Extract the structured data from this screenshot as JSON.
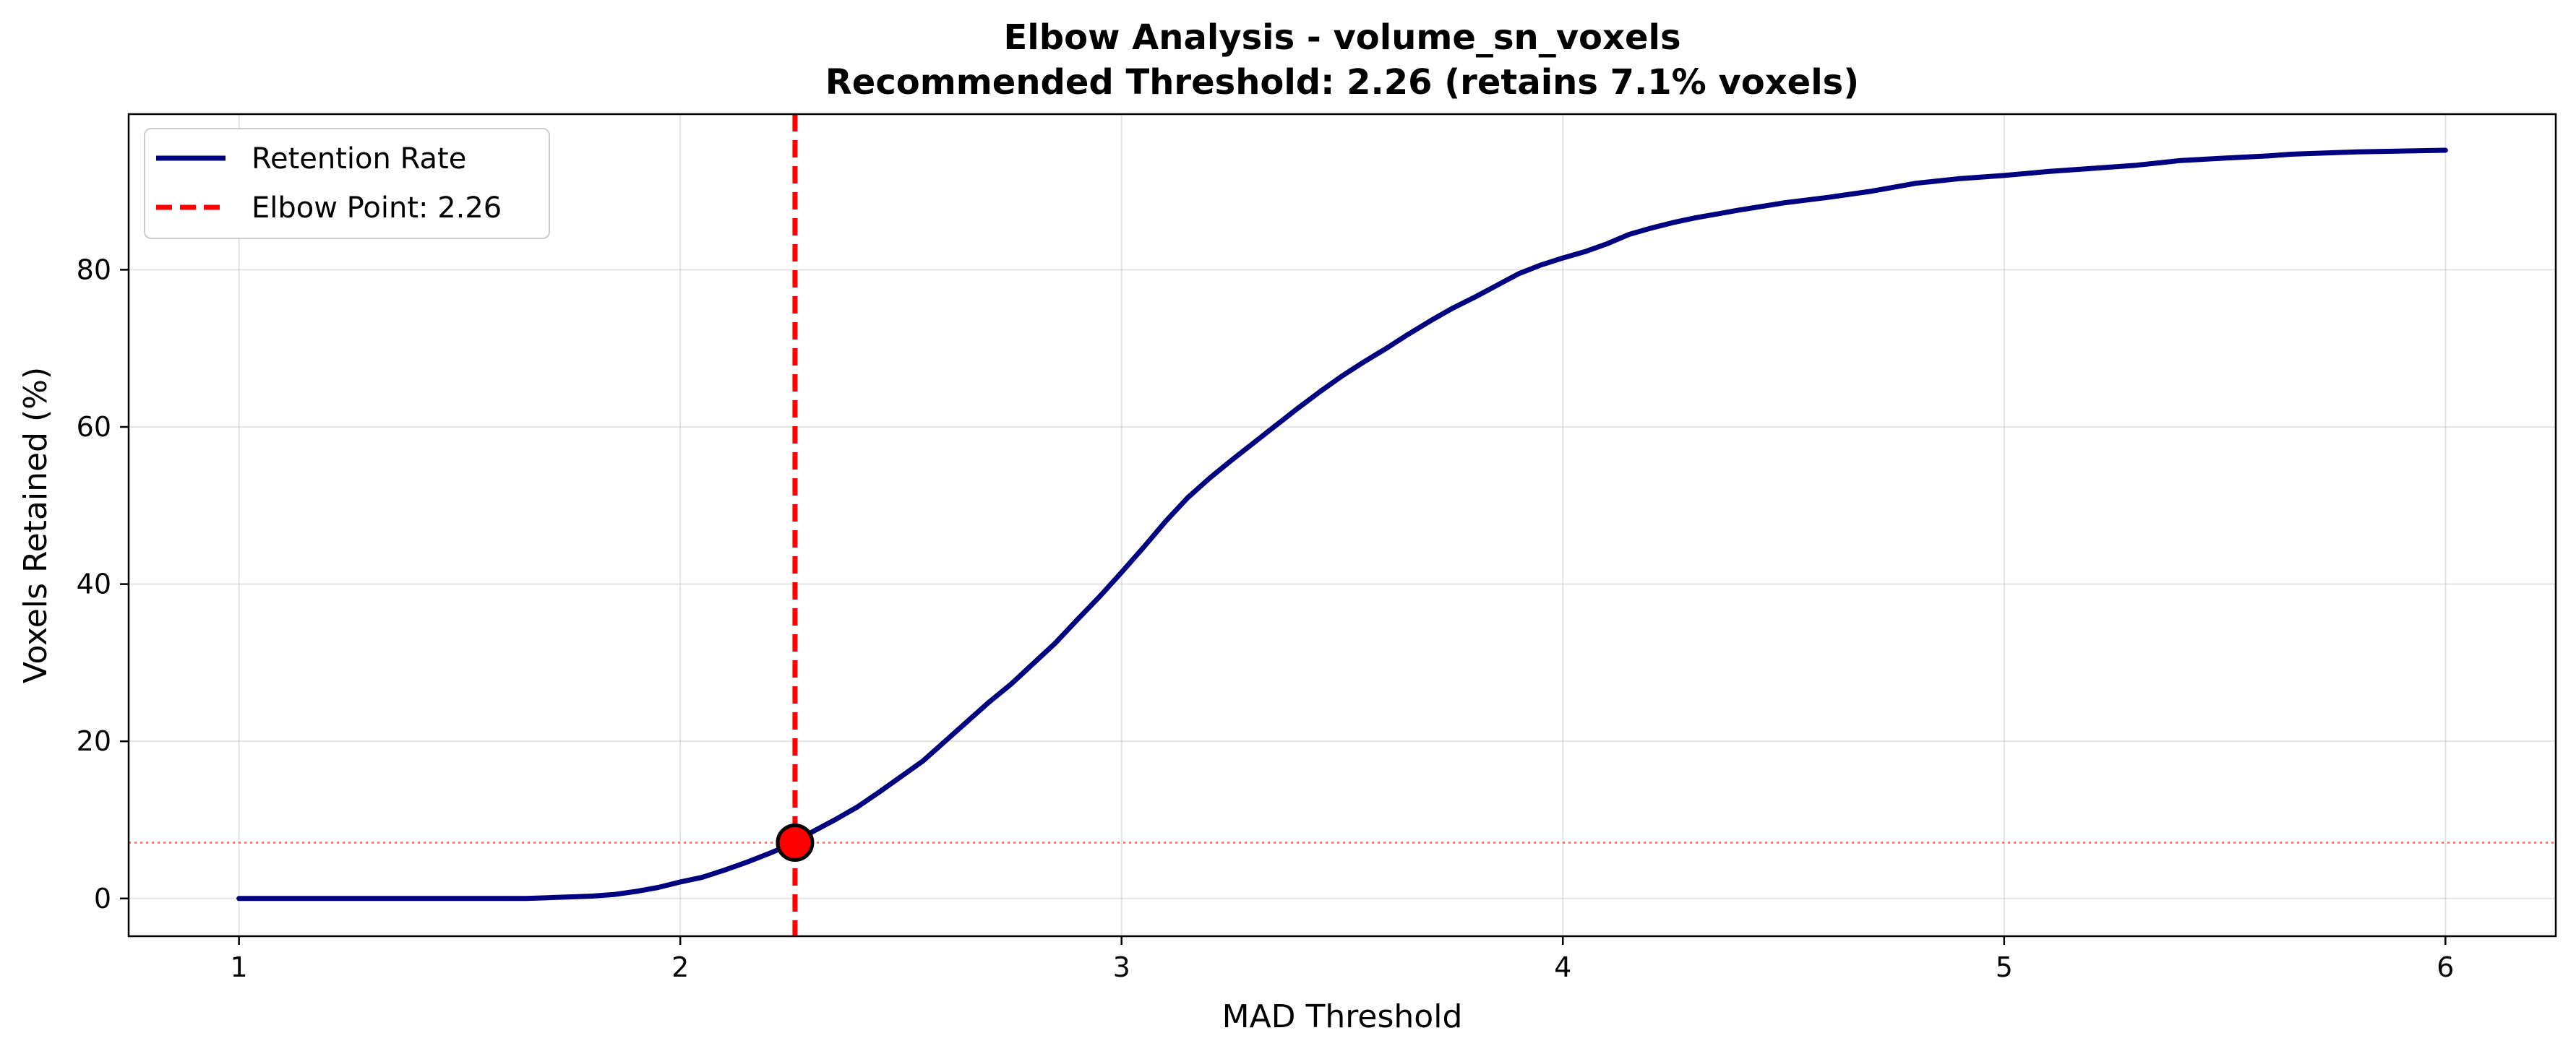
{
  "chart_data": {
    "type": "line",
    "title_line1": "Elbow Analysis - volume_sn_voxels",
    "title_line2": "Recommended Threshold: 2.26 (retains 7.1% voxels)",
    "xlabel": "MAD Threshold",
    "ylabel": "Voxels Retained (%)",
    "xlim": [
      0.75,
      6.25
    ],
    "ylim": [
      -4.8,
      99.8
    ],
    "xticks": [
      1,
      2,
      3,
      4,
      5,
      6
    ],
    "yticks": [
      0,
      20,
      40,
      60,
      80
    ],
    "grid": true,
    "legend_position": "top-left",
    "series": [
      {
        "name": "Retention Rate",
        "color": "#000080",
        "style": "solid",
        "x": [
          1.0,
          1.1,
          1.2,
          1.3,
          1.4,
          1.5,
          1.6,
          1.65,
          1.7,
          1.75,
          1.8,
          1.85,
          1.9,
          1.95,
          2.0,
          2.05,
          2.1,
          2.15,
          2.2,
          2.26,
          2.3,
          2.35,
          2.4,
          2.45,
          2.5,
          2.55,
          2.6,
          2.65,
          2.7,
          2.75,
          2.8,
          2.85,
          2.9,
          2.95,
          3.0,
          3.05,
          3.1,
          3.15,
          3.2,
          3.25,
          3.3,
          3.35,
          3.4,
          3.45,
          3.5,
          3.55,
          3.6,
          3.65,
          3.7,
          3.75,
          3.8,
          3.85,
          3.9,
          3.95,
          4.0,
          4.05,
          4.1,
          4.15,
          4.2,
          4.25,
          4.3,
          4.35,
          4.4,
          4.5,
          4.6,
          4.7,
          4.75,
          4.8,
          4.85,
          4.9,
          5.0,
          5.1,
          5.2,
          5.3,
          5.35,
          5.4,
          5.5,
          5.6,
          5.65,
          5.7,
          5.8,
          5.9,
          6.0
        ],
        "y": [
          0.0,
          0.0,
          0.0,
          0.0,
          0.0,
          0.0,
          0.0,
          0.0,
          0.1,
          0.2,
          0.3,
          0.5,
          0.9,
          1.4,
          2.1,
          2.7,
          3.6,
          4.6,
          5.7,
          7.1,
          8.5,
          10.0,
          11.6,
          13.5,
          15.5,
          17.5,
          20.0,
          22.5,
          25.0,
          27.3,
          29.9,
          32.5,
          35.5,
          38.4,
          41.5,
          44.7,
          48.0,
          51.0,
          53.5,
          55.8,
          58.0,
          60.2,
          62.4,
          64.5,
          66.5,
          68.3,
          70.0,
          71.8,
          73.5,
          75.1,
          76.5,
          78.0,
          79.5,
          80.6,
          81.5,
          82.3,
          83.3,
          84.5,
          85.3,
          86.0,
          86.6,
          87.1,
          87.6,
          88.5,
          89.2,
          90.0,
          90.5,
          91.0,
          91.3,
          91.6,
          92.0,
          92.5,
          92.9,
          93.3,
          93.6,
          93.9,
          94.2,
          94.5,
          94.7,
          94.8,
          95.0,
          95.1,
          95.2
        ]
      },
      {
        "name": "Elbow Point: 2.26",
        "color": "#ff0000",
        "style": "dashed-vertical",
        "x_value": 2.26
      }
    ],
    "elbow_point": {
      "x": 2.26,
      "y": 7.1,
      "color": "#ff0000"
    },
    "horizontal_reference": {
      "y": 7.1,
      "color": "#ff0000",
      "style": "dotted"
    }
  }
}
